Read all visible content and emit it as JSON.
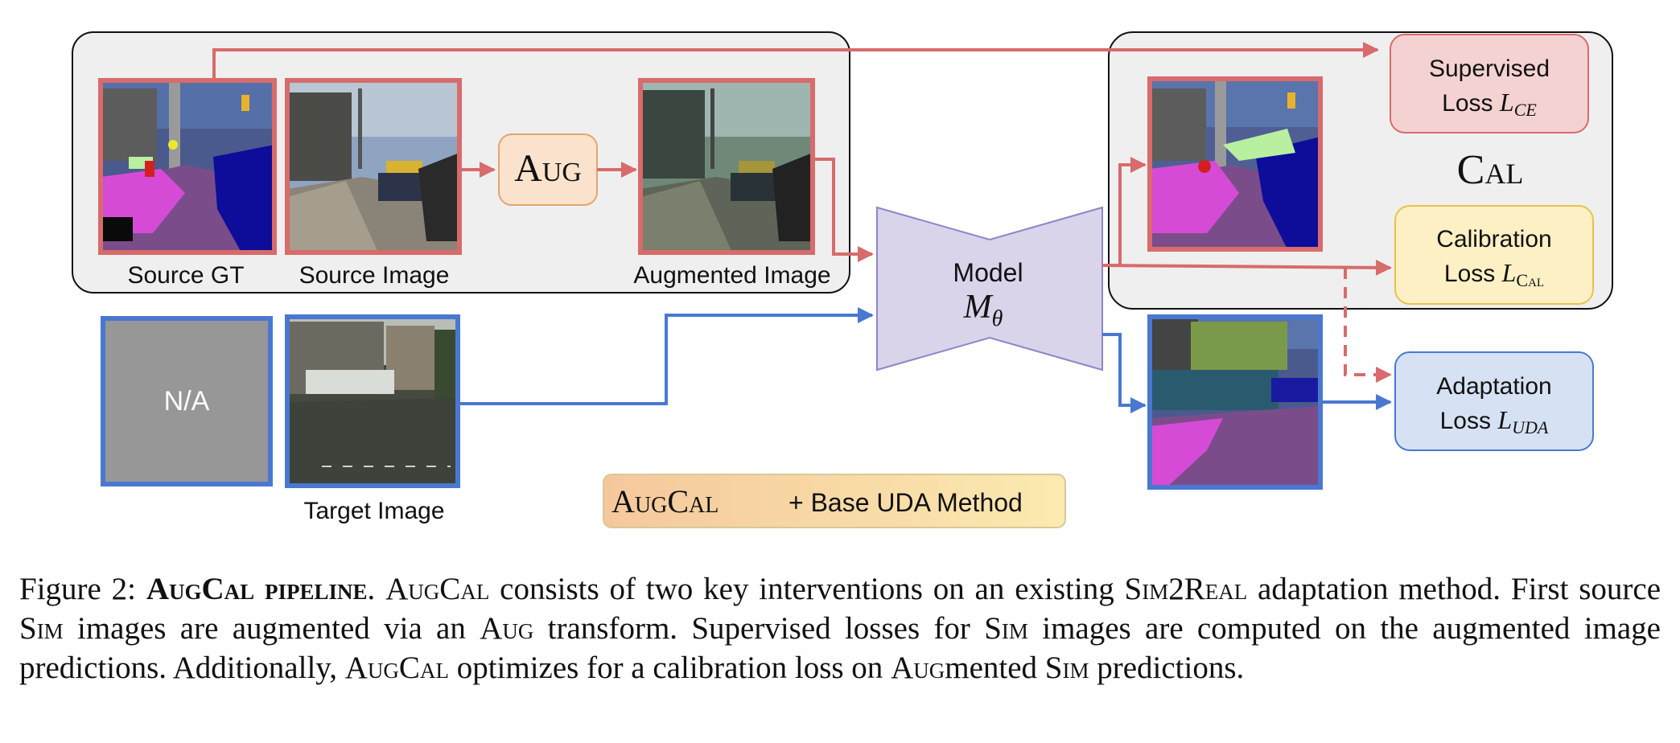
{
  "labels": {
    "source_gt": "Source GT",
    "source_image": "Source Image",
    "augmented_image": "Augmented Image",
    "target_image": "Target Image",
    "na": "N/A",
    "aug": "Aug",
    "model": "Model",
    "model_symbol_main": "M",
    "model_symbol_sub": "θ",
    "cal": "Cal",
    "supervised_line1": "Supervised",
    "supervised_line2": "Loss",
    "supervised_sym": "L",
    "supervised_sub": "CE",
    "calibration_line1": "Calibration",
    "calibration_line2": "Loss",
    "calibration_sym": "L",
    "calibration_sub": "Cal",
    "adaptation_line1": "Adaptation",
    "adaptation_line2": "Loss",
    "adaptation_sym": "L",
    "adaptation_sub": "UDA",
    "augcal_badge": "AugCal",
    "base_method": "+ Base UDA Method"
  },
  "caption": {
    "figure_label": "Figure 2:",
    "title": "AugCal pipeline",
    "s1a": ". ",
    "augcal1": "AugCal",
    "s1b": " consists of two key interventions on an existing ",
    "sim2real": "Sim2Real",
    "s1c": " adaptation method. First source ",
    "sim1": "Sim",
    "s2a": " images are augmented via an ",
    "aug1": "Aug",
    "s2b": " transform. Supervised losses for ",
    "sim2": "Sim",
    "s2c": " images are computed on the augmented image predictions. Additionally, ",
    "augcal2": "AugCal",
    "s3a": " optimizes for a calibration loss on ",
    "aug2": "Aug",
    "s3b": "mented ",
    "sim3": "Sim",
    "s3c": " predictions."
  },
  "colors": {
    "red_flow": "#d86b6b",
    "blue_flow": "#4a78d0",
    "panel_fill": "#efefef",
    "model_fill": "#d9d4ea",
    "model_stroke": "#8c86c8",
    "supervised_fill": "#f5d2d2",
    "calibration_fill": "#fdf0c4",
    "adaptation_fill": "#d6e2f3",
    "aug_fill": "#fbe2cc"
  }
}
